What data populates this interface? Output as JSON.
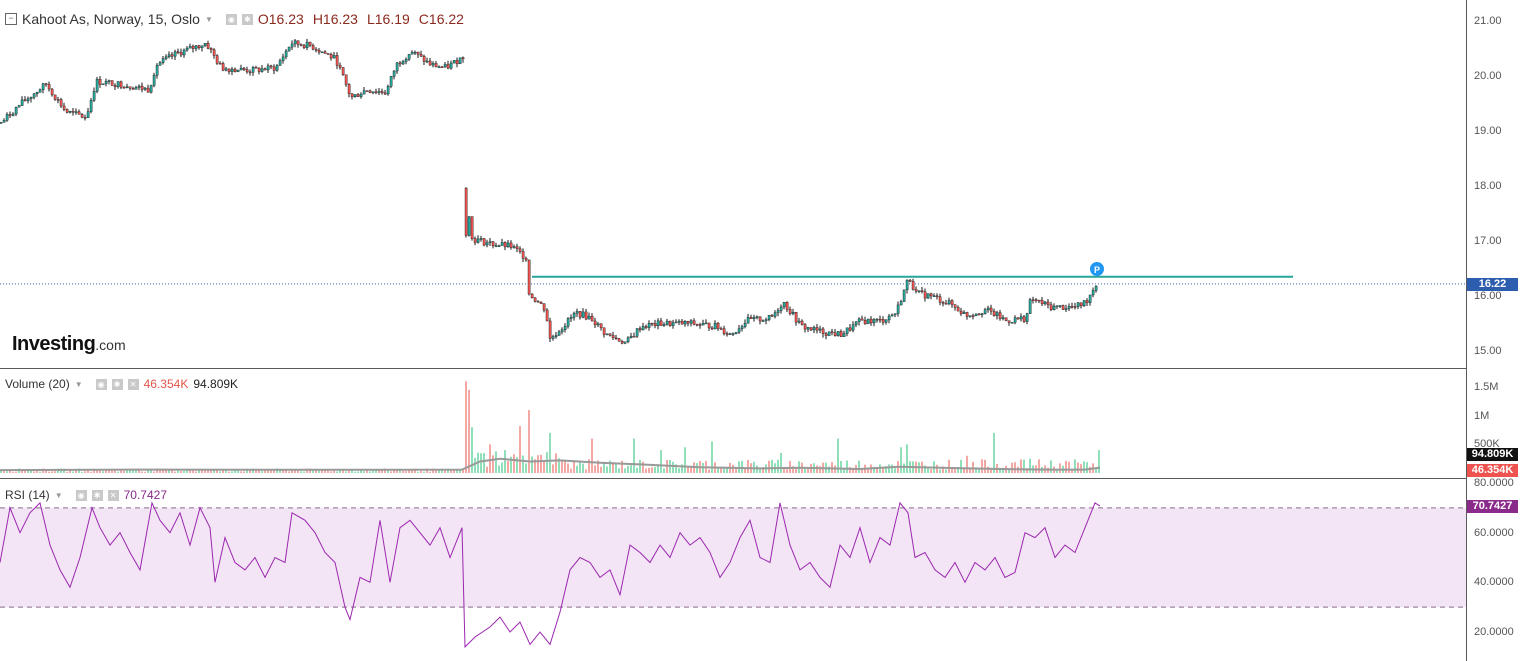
{
  "chart_data": [
    {
      "type": "candlestick",
      "title": "Kahoot As, Norway, 15, Oslo",
      "ohlc_labels": {
        "open": "O16.23",
        "high": "H16.23",
        "low": "L16.19",
        "close": "C16.22"
      },
      "ylim": [
        14.7,
        21.3
      ],
      "y_ticks": [
        "21.00",
        "20.00",
        "19.00",
        "18.00",
        "17.00",
        "16.00",
        "15.00"
      ],
      "last_price": 16.22,
      "last_price_label": "16.22",
      "horizontal_line": 16.35,
      "price_path": [
        [
          0,
          19.15
        ],
        [
          20,
          19.5
        ],
        [
          45,
          19.85
        ],
        [
          65,
          19.35
        ],
        [
          85,
          19.25
        ],
        [
          95,
          19.9
        ],
        [
          120,
          19.85
        ],
        [
          148,
          19.75
        ],
        [
          155,
          20.2
        ],
        [
          175,
          20.4
        ],
        [
          205,
          20.6
        ],
        [
          220,
          20.15
        ],
        [
          250,
          20.1
        ],
        [
          275,
          20.15
        ],
        [
          290,
          20.6
        ],
        [
          310,
          20.55
        ],
        [
          335,
          20.3
        ],
        [
          350,
          19.6
        ],
        [
          365,
          19.75
        ],
        [
          385,
          19.7
        ],
        [
          395,
          20.2
        ],
        [
          410,
          20.45
        ],
        [
          430,
          20.2
        ],
        [
          445,
          20.15
        ],
        [
          462,
          20.35
        ],
        [
          465,
          18.0
        ],
        [
          470,
          17.05
        ],
        [
          490,
          16.95
        ],
        [
          510,
          16.9
        ],
        [
          525,
          16.7
        ],
        [
          528,
          16.05
        ],
        [
          545,
          15.75
        ],
        [
          548,
          15.2
        ],
        [
          562,
          15.45
        ],
        [
          575,
          15.7
        ],
        [
          590,
          15.6
        ],
        [
          605,
          15.3
        ],
        [
          625,
          15.15
        ],
        [
          640,
          15.45
        ],
        [
          660,
          15.5
        ],
        [
          690,
          15.5
        ],
        [
          715,
          15.45
        ],
        [
          730,
          15.3
        ],
        [
          745,
          15.55
        ],
        [
          770,
          15.6
        ],
        [
          782,
          15.9
        ],
        [
          800,
          15.45
        ],
        [
          820,
          15.35
        ],
        [
          840,
          15.3
        ],
        [
          860,
          15.55
        ],
        [
          880,
          15.55
        ],
        [
          895,
          15.7
        ],
        [
          908,
          16.35
        ],
        [
          915,
          16.05
        ],
        [
          930,
          16.0
        ],
        [
          950,
          15.85
        ],
        [
          965,
          15.65
        ],
        [
          985,
          15.75
        ],
        [
          1005,
          15.55
        ],
        [
          1025,
          15.6
        ],
        [
          1030,
          15.95
        ],
        [
          1050,
          15.8
        ],
        [
          1075,
          15.8
        ],
        [
          1085,
          15.9
        ],
        [
          1095,
          16.22
        ]
      ],
      "marker_label": "P"
    },
    {
      "type": "bar",
      "title": "Volume (20)",
      "values_labels": {
        "volume": "46.354K",
        "ma": "94.809K"
      },
      "y_ticks": [
        "1.5M",
        "1M",
        "500K"
      ],
      "ylim": [
        0,
        1700000
      ],
      "last_volume": 46354,
      "last_ma": 94809,
      "volume_spikes": [
        [
          465,
          1600000,
          "down"
        ],
        [
          468,
          1450000,
          "down"
        ],
        [
          472,
          800000,
          "up"
        ],
        [
          490,
          500000,
          "down"
        ],
        [
          505,
          400000,
          "up"
        ],
        [
          520,
          820000,
          "down"
        ],
        [
          527,
          1100000,
          "down"
        ],
        [
          548,
          700000,
          "up"
        ],
        [
          590,
          600000,
          "down"
        ],
        [
          632,
          600000,
          "up"
        ],
        [
          660,
          400000,
          "up"
        ],
        [
          685,
          450000,
          "up"
        ],
        [
          710,
          550000,
          "up"
        ],
        [
          780,
          350000,
          "up"
        ],
        [
          838,
          600000,
          "up"
        ],
        [
          900,
          450000,
          "up"
        ],
        [
          905,
          500000,
          "up"
        ],
        [
          965,
          300000,
          "down"
        ],
        [
          993,
          700000,
          "up"
        ],
        [
          1030,
          250000,
          "up"
        ],
        [
          1098,
          400000,
          "up"
        ]
      ]
    },
    {
      "type": "line",
      "title": "RSI (14)",
      "value_label": "70.7427",
      "y_ticks": [
        "80.0000",
        "60.0000",
        "40.0000",
        "20.0000"
      ],
      "ylim": [
        10,
        82
      ],
      "bands": [
        30,
        70
      ],
      "last_value": 70.7427,
      "rsi_path": [
        [
          0,
          48
        ],
        [
          10,
          70
        ],
        [
          20,
          60
        ],
        [
          30,
          68
        ],
        [
          40,
          72
        ],
        [
          50,
          55
        ],
        [
          60,
          45
        ],
        [
          70,
          38
        ],
        [
          80,
          50
        ],
        [
          92,
          70
        ],
        [
          100,
          62
        ],
        [
          110,
          55
        ],
        [
          120,
          60
        ],
        [
          130,
          52
        ],
        [
          140,
          45
        ],
        [
          152,
          72
        ],
        [
          160,
          65
        ],
        [
          170,
          60
        ],
        [
          180,
          68
        ],
        [
          190,
          55
        ],
        [
          200,
          70
        ],
        [
          210,
          62
        ],
        [
          215,
          40
        ],
        [
          225,
          58
        ],
        [
          235,
          48
        ],
        [
          245,
          45
        ],
        [
          255,
          50
        ],
        [
          265,
          42
        ],
        [
          275,
          50
        ],
        [
          285,
          48
        ],
        [
          292,
          68
        ],
        [
          305,
          65
        ],
        [
          315,
          60
        ],
        [
          325,
          52
        ],
        [
          335,
          48
        ],
        [
          345,
          30
        ],
        [
          350,
          25
        ],
        [
          360,
          42
        ],
        [
          370,
          40
        ],
        [
          380,
          65
        ],
        [
          390,
          40
        ],
        [
          400,
          62
        ],
        [
          410,
          65
        ],
        [
          420,
          60
        ],
        [
          430,
          55
        ],
        [
          440,
          62
        ],
        [
          450,
          50
        ],
        [
          462,
          62
        ],
        [
          465,
          14
        ],
        [
          475,
          18
        ],
        [
          490,
          22
        ],
        [
          500,
          26
        ],
        [
          510,
          20
        ],
        [
          520,
          24
        ],
        [
          530,
          15
        ],
        [
          540,
          20
        ],
        [
          550,
          15
        ],
        [
          560,
          28
        ],
        [
          570,
          45
        ],
        [
          580,
          50
        ],
        [
          590,
          48
        ],
        [
          600,
          42
        ],
        [
          610,
          45
        ],
        [
          620,
          35
        ],
        [
          630,
          55
        ],
        [
          640,
          52
        ],
        [
          650,
          48
        ],
        [
          660,
          55
        ],
        [
          670,
          50
        ],
        [
          680,
          60
        ],
        [
          690,
          55
        ],
        [
          700,
          58
        ],
        [
          710,
          52
        ],
        [
          720,
          42
        ],
        [
          730,
          48
        ],
        [
          740,
          58
        ],
        [
          750,
          65
        ],
        [
          760,
          50
        ],
        [
          770,
          48
        ],
        [
          780,
          72
        ],
        [
          790,
          55
        ],
        [
          800,
          45
        ],
        [
          810,
          48
        ],
        [
          820,
          42
        ],
        [
          830,
          38
        ],
        [
          840,
          55
        ],
        [
          850,
          50
        ],
        [
          860,
          62
        ],
        [
          870,
          48
        ],
        [
          880,
          58
        ],
        [
          890,
          55
        ],
        [
          900,
          72
        ],
        [
          908,
          68
        ],
        [
          915,
          50
        ],
        [
          925,
          52
        ],
        [
          935,
          45
        ],
        [
          945,
          42
        ],
        [
          955,
          48
        ],
        [
          965,
          40
        ],
        [
          975,
          48
        ],
        [
          985,
          45
        ],
        [
          995,
          50
        ],
        [
          1005,
          42
        ],
        [
          1015,
          44
        ],
        [
          1025,
          60
        ],
        [
          1035,
          58
        ],
        [
          1045,
          62
        ],
        [
          1055,
          50
        ],
        [
          1065,
          55
        ],
        [
          1075,
          52
        ],
        [
          1085,
          62
        ],
        [
          1095,
          72
        ],
        [
          1100,
          70.7
        ]
      ]
    }
  ],
  "branding": {
    "logo_text": "Investing",
    "logo_suffix": ".com"
  },
  "colors": {
    "up": "#26a69a",
    "down": "#ef5350",
    "candle_border": "#1a1a1a",
    "trendline": "#26a69a",
    "rsi": "#9c27b0",
    "rsi_band_fill": "#f3e5f5",
    "volume_ma": "#999999",
    "price_line": "#3a5fa8",
    "marker": "#2196f3"
  }
}
